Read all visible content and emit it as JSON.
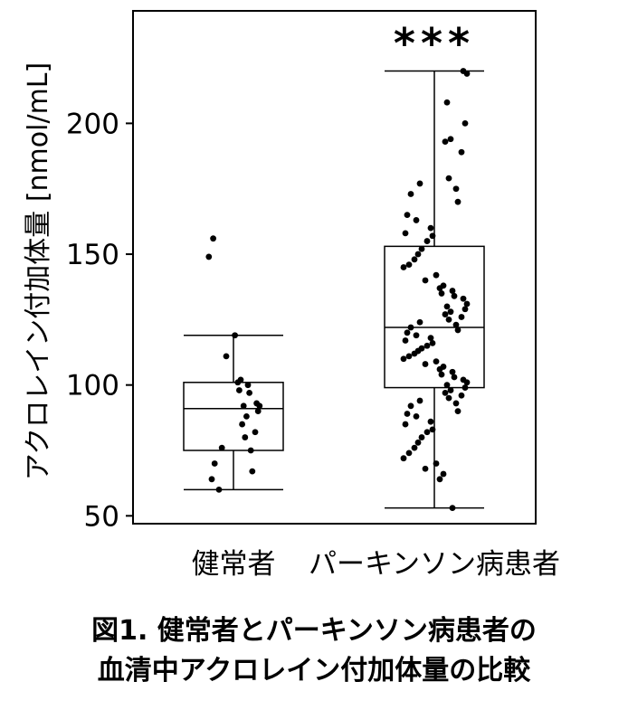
{
  "caption": {
    "line1": "図1. 健常者とパーキンソン病患者の",
    "line2": "血清中アクロレイン付加体量の比較"
  },
  "chart_data": {
    "type": "boxplot",
    "title": "",
    "ylabel": "アクロレイン付加体量 [nmol/mL]",
    "xlabel": "",
    "ylim": [
      47,
      243
    ],
    "yticks": [
      50,
      100,
      150,
      200
    ],
    "grid": false,
    "legend": "none",
    "significance": {
      "group": 1,
      "label": "***"
    },
    "colors": {
      "box": "#000000",
      "point": "#000000",
      "background": "#ffffff"
    },
    "groups": [
      {
        "name": "健常者",
        "whisker_low": 60,
        "q1": 75,
        "median": 91,
        "q3": 101,
        "whisker_high": 119,
        "points": [
          156,
          149,
          119,
          111,
          102,
          101,
          100,
          98,
          97,
          93,
          92,
          92,
          90,
          88,
          85,
          82,
          80,
          76,
          75,
          70,
          67,
          64,
          60
        ]
      },
      {
        "name": "パーキンソン病患者",
        "whisker_low": 53,
        "q1": 99,
        "median": 122,
        "q3": 153,
        "whisker_high": 220,
        "points": [
          220,
          219,
          208,
          200,
          194,
          193,
          189,
          179,
          177,
          175,
          173,
          170,
          165,
          163,
          160,
          158,
          157,
          155,
          152,
          150,
          148,
          146,
          145,
          142,
          140,
          138,
          137,
          136,
          135,
          134,
          133,
          131,
          130,
          129,
          128,
          127,
          126,
          125,
          124,
          123,
          122,
          121,
          120,
          119,
          118,
          117,
          116,
          115,
          114,
          113,
          112,
          111,
          110,
          109,
          108,
          107,
          106,
          105,
          104,
          103,
          102,
          101,
          100,
          99,
          98,
          97,
          96,
          95,
          94,
          93,
          92,
          90,
          89,
          88,
          86,
          85,
          83,
          82,
          80,
          78,
          76,
          74,
          72,
          70,
          68,
          66,
          64,
          53
        ]
      }
    ]
  }
}
